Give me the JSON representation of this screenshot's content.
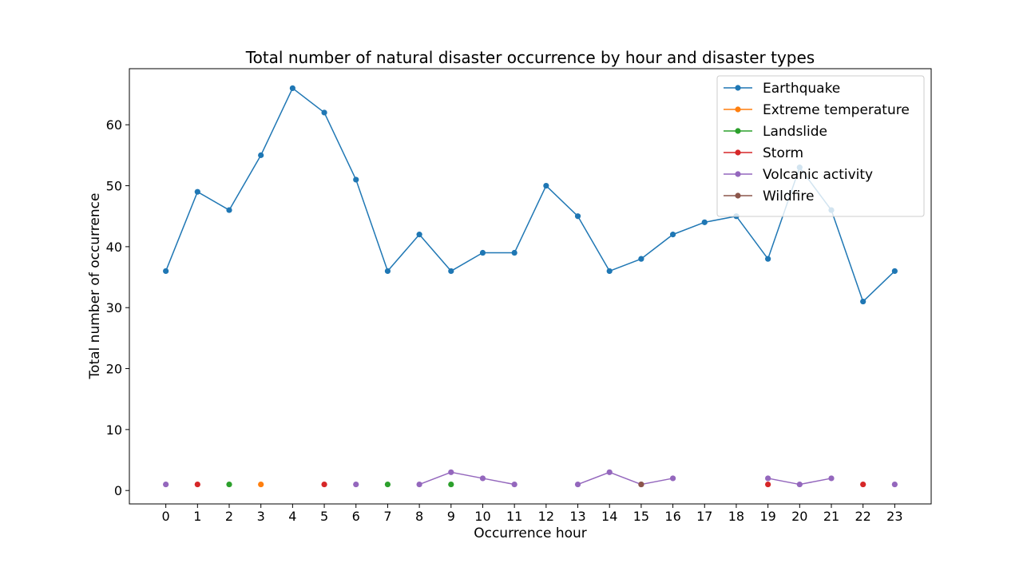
{
  "chart_data": {
    "type": "line",
    "title": "Total number of natural disaster occurrence by hour and disaster types",
    "xlabel": "Occurrence hour",
    "ylabel": "Total number of occurrence",
    "x": [
      0,
      1,
      2,
      3,
      4,
      5,
      6,
      7,
      8,
      9,
      10,
      11,
      12,
      13,
      14,
      15,
      16,
      17,
      18,
      19,
      20,
      21,
      22,
      23
    ],
    "xlim": [
      -1.15,
      24.15
    ],
    "ylim": [
      -2.2,
      69.2
    ],
    "yticks": [
      0,
      10,
      20,
      30,
      40,
      50,
      60
    ],
    "grid": false,
    "legend_position": "top-right",
    "series": [
      {
        "name": "Earthquake",
        "color": "#1f77b4",
        "points": [
          [
            0,
            36
          ],
          [
            1,
            49
          ],
          [
            2,
            46
          ],
          [
            3,
            55
          ],
          [
            4,
            66
          ],
          [
            5,
            62
          ],
          [
            6,
            51
          ],
          [
            7,
            36
          ],
          [
            8,
            42
          ],
          [
            9,
            36
          ],
          [
            10,
            39
          ],
          [
            11,
            39
          ],
          [
            12,
            50
          ],
          [
            13,
            45
          ],
          [
            14,
            36
          ],
          [
            15,
            38
          ],
          [
            16,
            42
          ],
          [
            17,
            44
          ],
          [
            18,
            45
          ],
          [
            19,
            38
          ],
          [
            20,
            53
          ],
          [
            21,
            46
          ],
          [
            22,
            31
          ],
          [
            23,
            36
          ]
        ]
      },
      {
        "name": "Extreme temperature",
        "color": "#ff7f0e",
        "points": [
          [
            3,
            1
          ]
        ]
      },
      {
        "name": "Landslide",
        "color": "#2ca02c",
        "points": [
          [
            2,
            1
          ],
          [
            7,
            1
          ],
          [
            9,
            1
          ]
        ]
      },
      {
        "name": "Storm",
        "color": "#d62728",
        "points": [
          [
            1,
            1
          ],
          [
            5,
            1
          ],
          [
            19,
            1
          ],
          [
            22,
            1
          ]
        ]
      },
      {
        "name": "Volcanic activity",
        "color": "#9467bd",
        "points": [
          [
            0,
            1
          ],
          [
            6,
            1
          ],
          [
            8,
            1
          ],
          [
            9,
            3
          ],
          [
            10,
            2
          ],
          [
            11,
            1
          ],
          [
            13,
            1
          ],
          [
            14,
            3
          ],
          [
            15,
            1
          ],
          [
            16,
            2
          ],
          [
            19,
            2
          ],
          [
            20,
            1
          ],
          [
            21,
            2
          ],
          [
            23,
            1
          ]
        ]
      },
      {
        "name": "Wildfire",
        "color": "#8c564b",
        "points": [
          [
            15,
            1
          ]
        ]
      }
    ]
  }
}
